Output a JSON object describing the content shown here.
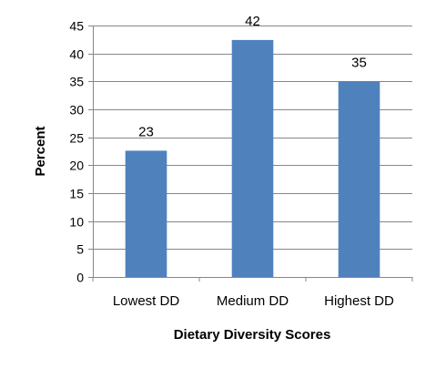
{
  "chart_data": {
    "type": "bar",
    "categories": [
      "Lowest DD",
      "Medium DD",
      "Highest DD"
    ],
    "values": [
      22.6,
      42.4,
      35
    ],
    "data_labels": [
      "23",
      "42",
      "35"
    ],
    "xlabel": "Dietary Diversity Scores",
    "ylabel": "Percent",
    "ylim": [
      0,
      45
    ],
    "yticks": [
      0,
      5,
      10,
      15,
      20,
      25,
      30,
      35,
      40,
      45
    ],
    "grid": true,
    "bar_color": "#4f81bd"
  }
}
